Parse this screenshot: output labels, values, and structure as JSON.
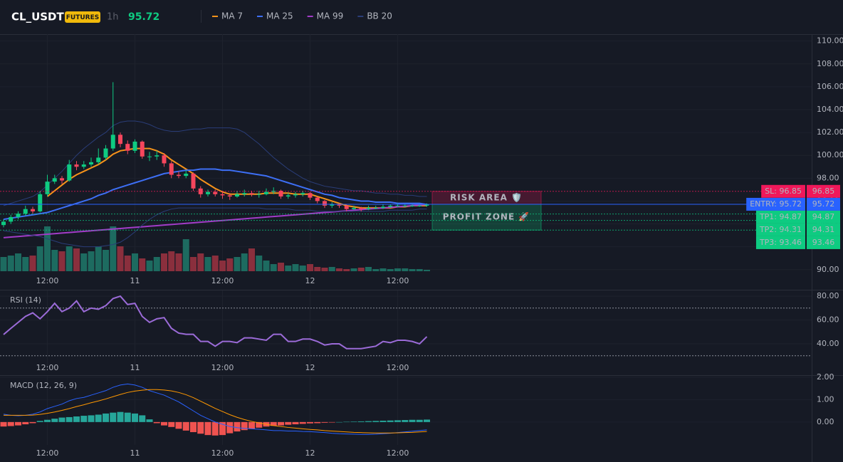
{
  "header": {
    "symbol": "CL_USDT",
    "badge": "FUTURES",
    "interval": "1h",
    "price": "95.72"
  },
  "chart_data": [
    {
      "type": "candlestick",
      "categories": [
        null,
        null,
        null,
        null,
        null,
        null,
        "12:00",
        null,
        null,
        null,
        null,
        null,
        null,
        null,
        null,
        null,
        null,
        null,
        "11",
        null,
        null,
        null,
        null,
        null,
        null,
        null,
        null,
        null,
        null,
        null,
        "12:00",
        null,
        null,
        null,
        null,
        null,
        null,
        null,
        null,
        null,
        null,
        null,
        "12",
        null,
        null,
        null,
        null,
        null,
        null,
        null,
        null,
        null,
        null,
        null,
        "12:00",
        null,
        null,
        null,
        null
      ],
      "open": [
        93.9,
        94.2,
        94.6,
        94.9,
        95.3,
        95.1,
        96.6,
        97.7,
        98.0,
        97.8,
        99.2,
        99.0,
        99.2,
        99.4,
        99.8,
        100.6,
        101.8,
        101.0,
        100.4,
        101.2,
        99.9,
        99.9,
        100.0,
        99.3,
        98.3,
        98.2,
        98.4,
        97.1,
        96.6,
        96.8,
        96.6,
        96.5,
        96.4,
        96.6,
        96.7,
        96.6,
        96.6,
        96.8,
        96.9,
        96.4,
        96.5,
        96.6,
        96.7,
        96.3,
        96.0,
        95.6,
        95.7,
        95.6,
        95.3,
        95.4,
        95.3,
        95.4,
        95.4,
        95.5,
        95.6,
        95.6,
        95.6,
        95.6,
        95.6
      ],
      "high": [
        94.4,
        94.8,
        95.1,
        95.6,
        95.5,
        96.9,
        98.3,
        98.3,
        98.2,
        99.6,
        99.5,
        99.5,
        99.8,
        100.6,
        100.9,
        106.4,
        102.0,
        101.3,
        101.4,
        101.3,
        100.3,
        100.4,
        100.2,
        99.5,
        98.6,
        98.7,
        98.5,
        97.3,
        97.0,
        97.0,
        96.9,
        96.7,
        96.9,
        97.0,
        96.9,
        96.9,
        97.1,
        97.2,
        97.0,
        96.7,
        96.8,
        96.9,
        96.8,
        96.4,
        96.1,
        95.9,
        95.8,
        95.7,
        95.6,
        95.5,
        95.6,
        95.6,
        95.7,
        95.7,
        95.8,
        95.7,
        95.7,
        95.7,
        95.8
      ],
      "low": [
        93.7,
        94.0,
        94.4,
        94.7,
        94.9,
        95.0,
        96.4,
        97.5,
        97.5,
        97.7,
        98.7,
        98.8,
        99.0,
        99.2,
        99.6,
        100.4,
        100.7,
        100.1,
        100.2,
        99.7,
        99.5,
        99.6,
        99.0,
        98.0,
        98.0,
        98.0,
        96.9,
        96.3,
        96.4,
        96.4,
        96.2,
        96.1,
        96.3,
        96.4,
        96.4,
        96.3,
        96.5,
        96.6,
        96.2,
        96.2,
        96.3,
        96.4,
        96.1,
        95.8,
        95.4,
        95.4,
        95.4,
        95.1,
        95.2,
        95.1,
        95.2,
        95.3,
        95.3,
        95.4,
        95.5,
        95.5,
        95.5,
        95.5,
        95.5
      ],
      "close": [
        94.2,
        94.6,
        94.9,
        95.3,
        95.1,
        96.6,
        97.7,
        98.0,
        97.8,
        99.2,
        99.0,
        99.2,
        99.4,
        99.8,
        100.6,
        101.8,
        101.0,
        100.4,
        101.2,
        99.9,
        99.9,
        100.0,
        99.3,
        98.3,
        98.2,
        98.4,
        97.1,
        96.6,
        96.8,
        96.6,
        96.5,
        96.4,
        96.6,
        96.7,
        96.6,
        96.6,
        96.8,
        96.9,
        96.4,
        96.5,
        96.6,
        96.7,
        96.3,
        96.0,
        95.6,
        95.7,
        95.6,
        95.3,
        95.4,
        95.3,
        95.4,
        95.4,
        95.5,
        95.6,
        95.6,
        95.6,
        95.6,
        95.6,
        95.72
      ],
      "volume": [
        20,
        22,
        25,
        20,
        22,
        35,
        63,
        30,
        28,
        35,
        32,
        25,
        28,
        35,
        30,
        63,
        35,
        22,
        25,
        18,
        15,
        20,
        25,
        28,
        25,
        45,
        20,
        25,
        20,
        22,
        15,
        18,
        20,
        25,
        32,
        22,
        15,
        10,
        12,
        8,
        10,
        8,
        10,
        6,
        5,
        6,
        4,
        3,
        4,
        5,
        6,
        3,
        4,
        3,
        4,
        4,
        3,
        3,
        2
      ],
      "up_color": "#0ecb81",
      "down_color": "#f6465d",
      "volume_up_color": "#1d6b60",
      "volume_down_color": "#8a2f3d",
      "series": [
        {
          "name": "MA 7",
          "color": "#f7931a",
          "values": [
            null,
            null,
            null,
            null,
            null,
            null,
            96.4,
            96.9,
            97.4,
            97.9,
            98.3,
            98.6,
            98.9,
            99.2,
            99.6,
            100.1,
            100.4,
            100.5,
            100.6,
            100.6,
            100.6,
            100.4,
            100.1,
            99.6,
            99.2,
            98.8,
            98.4,
            97.9,
            97.5,
            97.1,
            96.8,
            96.6,
            96.6,
            96.6,
            96.6,
            96.6,
            96.7,
            96.7,
            96.7,
            96.7,
            96.6,
            96.6,
            96.6,
            96.4,
            96.2,
            96.0,
            95.8,
            95.6,
            95.5,
            95.4,
            95.4,
            95.4,
            95.4,
            95.4,
            95.5,
            95.5,
            95.6,
            95.6,
            95.6
          ]
        },
        {
          "name": "MA 25",
          "color": "#3d6ff5",
          "values": [
            94.4,
            94.5,
            94.6,
            94.7,
            94.8,
            94.9,
            95.0,
            95.2,
            95.4,
            95.6,
            95.8,
            96.0,
            96.2,
            96.5,
            96.7,
            97.0,
            97.2,
            97.4,
            97.6,
            97.8,
            98.0,
            98.2,
            98.4,
            98.5,
            98.6,
            98.7,
            98.7,
            98.8,
            98.8,
            98.8,
            98.7,
            98.7,
            98.6,
            98.5,
            98.4,
            98.3,
            98.2,
            98.0,
            97.8,
            97.6,
            97.4,
            97.2,
            97.0,
            96.8,
            96.6,
            96.5,
            96.3,
            96.2,
            96.1,
            96.0,
            96.0,
            95.9,
            95.9,
            95.9,
            95.8,
            95.8,
            95.8,
            95.8,
            95.7
          ]
        },
        {
          "name": "MA 99",
          "color": "#a23cc8",
          "values": [
            92.8,
            92.85,
            92.9,
            92.95,
            93,
            93.05,
            93.1,
            93.15,
            93.2,
            93.25,
            93.3,
            93.35,
            93.4,
            93.45,
            93.5,
            93.55,
            93.6,
            93.65,
            93.7,
            93.75,
            93.8,
            93.85,
            93.9,
            93.95,
            94,
            94.05,
            94.1,
            94.15,
            94.2,
            94.25,
            94.3,
            94.35,
            94.4,
            94.45,
            94.5,
            94.55,
            94.6,
            94.65,
            94.7,
            94.75,
            94.8,
            94.85,
            94.9,
            94.95,
            95,
            95.05,
            95.1,
            95.15,
            95.2,
            95.25,
            95.3,
            95.35,
            95.4,
            95.45,
            95.5,
            95.55,
            95.6,
            95.65,
            95.7
          ]
        },
        {
          "name": "BB 20",
          "color": "#2a3d78",
          "upper": [
            95.6,
            95.8,
            96.0,
            96.2,
            96.4,
            96.8,
            97.4,
            98.0,
            98.6,
            99.3,
            100.0,
            100.6,
            101.1,
            101.6,
            102.0,
            102.6,
            102.9,
            103.0,
            103.0,
            102.9,
            102.7,
            102.4,
            102.2,
            102.1,
            102.1,
            102.2,
            102.3,
            102.3,
            102.4,
            102.4,
            102.4,
            102.4,
            102.3,
            102.0,
            101.5,
            101.0,
            100.4,
            99.8,
            99.3,
            98.8,
            98.4,
            98.0,
            97.7,
            97.5,
            97.3,
            97.2,
            97.1,
            97.0,
            96.9,
            96.9,
            96.8,
            96.7,
            96.7,
            96.6,
            96.6,
            96.5,
            96.5,
            96.4,
            96.4
          ],
          "lower": [
            93.4,
            93.3,
            93.2,
            93.1,
            93.0,
            92.9,
            92.7,
            92.5,
            92.3,
            92.2,
            92.1,
            92.0,
            92.0,
            92.0,
            92.1,
            92.2,
            92.4,
            92.8,
            93.3,
            93.9,
            94.4,
            94.8,
            95.1,
            95.3,
            95.4,
            95.4,
            95.4,
            95.4,
            95.4,
            95.4,
            95.4,
            95.4,
            95.4,
            95.4,
            95.4,
            95.4,
            95.3,
            95.3,
            95.3,
            95.3,
            95.2,
            95.2,
            95.2,
            95.1,
            95.1,
            95.1,
            95.1,
            95.1,
            95.1,
            95.1,
            95.1,
            95.1,
            95.1,
            95.2,
            95.2,
            95.2,
            95.2,
            95.3,
            95.3
          ]
        }
      ],
      "ylim": [
        89.8,
        110.6
      ],
      "yticks": [
        {
          "value": 90,
          "label": "90.00"
        },
        {
          "value": 92,
          "label": "92.00"
        },
        {
          "value": 94,
          "label": "94.00"
        },
        {
          "value": 96,
          "label": "96.00"
        },
        {
          "value": 98,
          "label": "98.00"
        },
        {
          "value": 100,
          "label": "100.00"
        },
        {
          "value": 102,
          "label": "102.00"
        },
        {
          "value": 104,
          "label": "104.00"
        },
        {
          "value": 106,
          "label": "106.00"
        },
        {
          "value": 108,
          "label": "108.00"
        },
        {
          "value": 110,
          "label": "110.00"
        }
      ],
      "levels": [
        {
          "label": "SL: 96.85",
          "value": 96.85,
          "color": "#f0185a",
          "text_color": "#ffffff",
          "style": "dotted"
        },
        {
          "label": "ENTRY: 95.72",
          "value": 95.72,
          "color": "#2962ff",
          "text_color": "#ffffff",
          "style": "solid"
        },
        {
          "label": "TP1: 94.87",
          "value": 94.87,
          "color": "#0ecb81",
          "text_color": "#0b0e14",
          "style": "dotted"
        },
        {
          "label": "TP2: 94.31",
          "value": 94.31,
          "color": "#0ecb81",
          "text_color": "#0b0e14",
          "style": "dotted"
        },
        {
          "label": "TP3: 93.46",
          "value": 93.46,
          "color": "#0ecb81",
          "text_color": "#0b0e14",
          "style": "dotted"
        }
      ],
      "zones": [
        {
          "label": "RISK AREA 🛡️",
          "color": "#f0185a"
        },
        {
          "label": "PROFIT ZONE 🚀",
          "color": "#0ecb81"
        }
      ]
    },
    {
      "type": "line",
      "title": "RSI (14)",
      "color": "#9b6bd8",
      "values": [
        47.8,
        53,
        58,
        63,
        66,
        61,
        67,
        74,
        67,
        70,
        76,
        67,
        70,
        69,
        72,
        78,
        80,
        73,
        74,
        63,
        58,
        61,
        62,
        53,
        49,
        48,
        48,
        42,
        42,
        38,
        42,
        42,
        41,
        45,
        45,
        44,
        43,
        48,
        48,
        42,
        42,
        44,
        44,
        42,
        39,
        40,
        40,
        36,
        36,
        36,
        37,
        38,
        42,
        41,
        43,
        43,
        42,
        40,
        46
      ],
      "levels": [
        70,
        30
      ],
      "ylim": [
        17.9,
        84.8
      ],
      "yticks": [
        {
          "value": 40,
          "label": "40.00"
        },
        {
          "value": 60,
          "label": "60.00"
        },
        {
          "value": 80,
          "label": "80.00"
        }
      ]
    },
    {
      "type": "macd",
      "title": "MACD (12, 26, 9)",
      "series": [
        {
          "color": "#2962ff",
          "values": [
            0.35,
            0.3,
            0.28,
            0.3,
            0.35,
            0.45,
            0.6,
            0.7,
            0.8,
            0.95,
            1.05,
            1.1,
            1.2,
            1.3,
            1.4,
            1.55,
            1.65,
            1.7,
            1.65,
            1.55,
            1.4,
            1.3,
            1.2,
            1.05,
            0.9,
            0.7,
            0.5,
            0.3,
            0.15,
            0.0,
            -0.1,
            -0.2,
            -0.25,
            -0.28,
            -0.3,
            -0.32,
            -0.35,
            -0.38,
            -0.38,
            -0.4,
            -0.4,
            -0.42,
            -0.43,
            -0.45,
            -0.47,
            -0.5,
            -0.52,
            -0.53,
            -0.54,
            -0.55,
            -0.55,
            -0.54,
            -0.52,
            -0.5,
            -0.47,
            -0.44,
            -0.41,
            -0.38,
            -0.35
          ]
        },
        {
          "color": "#ff9800",
          "values": [
            0.3,
            0.3,
            0.3,
            0.3,
            0.31,
            0.34,
            0.39,
            0.45,
            0.52,
            0.6,
            0.69,
            0.77,
            0.86,
            0.94,
            1.03,
            1.13,
            1.23,
            1.32,
            1.38,
            1.42,
            1.45,
            1.45,
            1.43,
            1.39,
            1.32,
            1.22,
            1.09,
            0.93,
            0.77,
            0.61,
            0.47,
            0.33,
            0.21,
            0.11,
            0.03,
            -0.04,
            -0.1,
            -0.16,
            -0.2,
            -0.24,
            -0.27,
            -0.3,
            -0.33,
            -0.35,
            -0.38,
            -0.4,
            -0.42,
            -0.44,
            -0.46,
            -0.47,
            -0.48,
            -0.49,
            -0.49,
            -0.49,
            -0.48,
            -0.47,
            -0.46,
            -0.44,
            -0.42
          ]
        }
      ],
      "histogram": {
        "up_color": "#26a69a",
        "down_color": "#ef5350",
        "values": [
          -0.2,
          -0.18,
          -0.15,
          -0.1,
          -0.05,
          0.05,
          0.1,
          0.15,
          0.2,
          0.22,
          0.25,
          0.28,
          0.3,
          0.33,
          0.38,
          0.42,
          0.45,
          0.42,
          0.38,
          0.3,
          0.12,
          -0.05,
          -0.15,
          -0.22,
          -0.3,
          -0.38,
          -0.45,
          -0.52,
          -0.58,
          -0.6,
          -0.58,
          -0.5,
          -0.42,
          -0.36,
          -0.3,
          -0.25,
          -0.2,
          -0.17,
          -0.15,
          -0.12,
          -0.1,
          -0.08,
          -0.06,
          -0.05,
          -0.03,
          -0.02,
          0.0,
          0.01,
          0.02,
          0.03,
          0.04,
          0.05,
          0.06,
          0.07,
          0.08,
          0.09,
          0.1,
          0.1,
          0.11
        ]
      },
      "ylim": [
        -1.02,
        2.06
      ],
      "yticks": [
        {
          "value": 0,
          "label": "0.00"
        },
        {
          "value": 1,
          "label": "1.00"
        },
        {
          "value": 2,
          "label": "2.00"
        }
      ]
    }
  ]
}
